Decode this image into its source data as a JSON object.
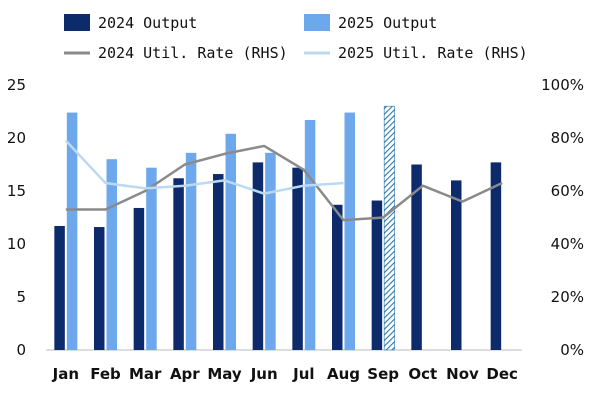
{
  "chart_data": {
    "type": "bar",
    "categories": [
      "Jan",
      "Feb",
      "Mar",
      "Apr",
      "May",
      "Jun",
      "Jul",
      "Aug",
      "Sep",
      "Oct",
      "Nov",
      "Dec"
    ],
    "ylim": [
      0,
      25
    ],
    "y2lim": [
      0,
      100
    ],
    "yticks": [
      "0",
      "5",
      "10",
      "15",
      "20",
      "25"
    ],
    "y2ticks": [
      "0%",
      "20%",
      "40%",
      "60%",
      "80%",
      "100%"
    ],
    "series": [
      {
        "name": "2024 Output",
        "kind": "bar",
        "axis": "left",
        "color": "#0d2b6b",
        "values": [
          11.7,
          11.6,
          13.4,
          16.2,
          16.6,
          17.7,
          17.2,
          13.7,
          14.1,
          17.5,
          16.0,
          17.7
        ]
      },
      {
        "name": "2025 Output",
        "kind": "bar",
        "axis": "left",
        "color": "#6ea8ec",
        "values": [
          22.4,
          18.0,
          17.2,
          18.6,
          20.4,
          18.6,
          21.7,
          22.4,
          23.0,
          null,
          null,
          null
        ],
        "hatched_index": 8
      },
      {
        "name": "2024 Util. Rate (RHS)",
        "kind": "line",
        "axis": "right",
        "color": "#8a8a8a",
        "values": [
          53,
          53,
          60,
          70,
          74,
          77,
          68,
          49,
          50,
          62,
          56,
          63
        ]
      },
      {
        "name": "2025 Util. Rate (RHS)",
        "kind": "line",
        "axis": "right",
        "color": "#bcd9f2",
        "values": [
          79,
          63,
          61,
          62,
          64,
          59,
          62,
          63,
          null,
          null,
          null,
          null
        ]
      }
    ],
    "legend": "top",
    "grid": false
  }
}
